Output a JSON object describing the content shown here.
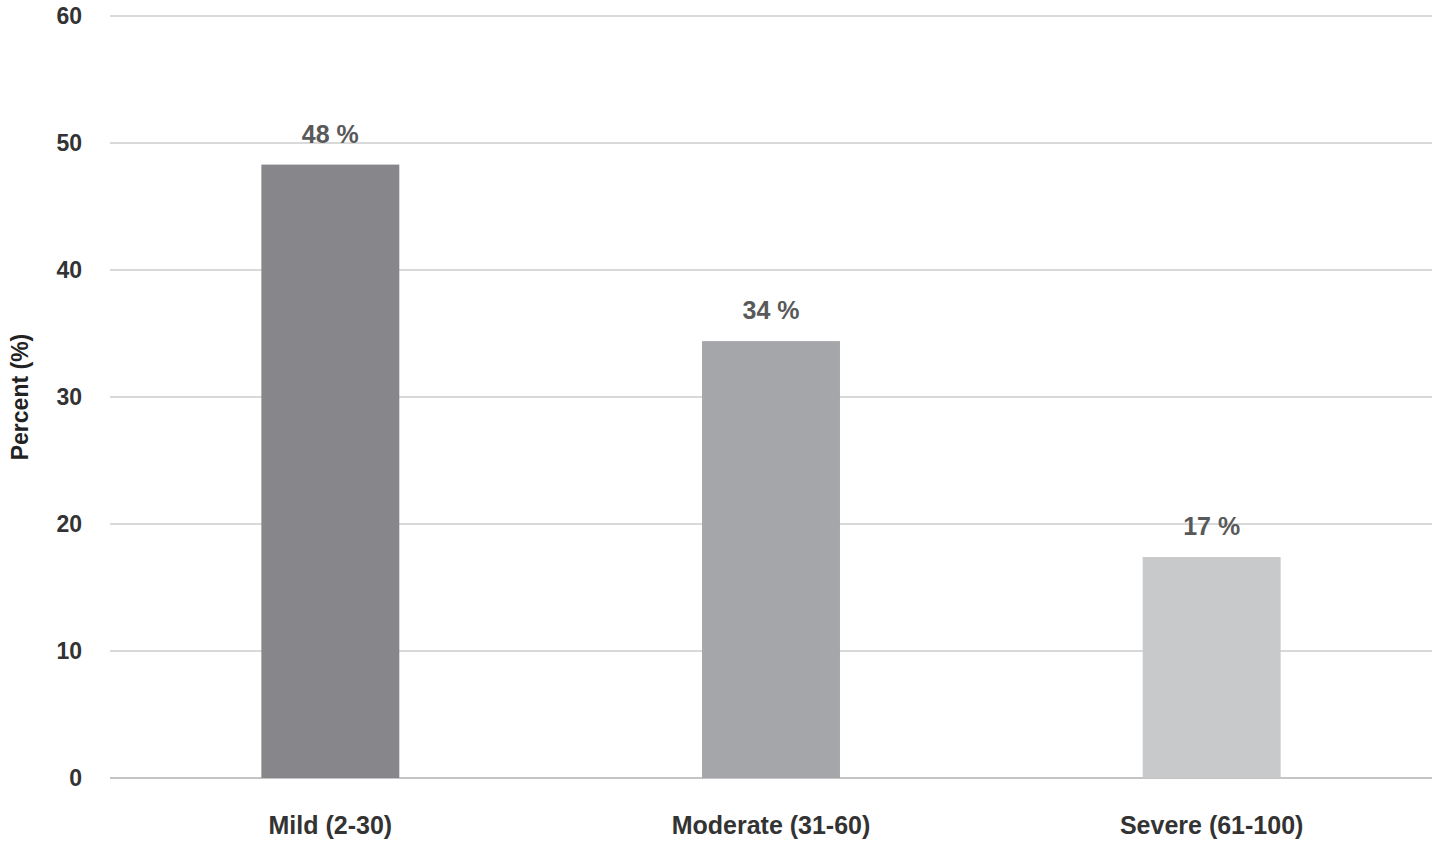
{
  "chart_data": {
    "type": "bar",
    "y_label": "Percent (%)",
    "categories": [
      "Mild (2-30)",
      "Moderate (31-60)",
      "Severe (61-100)"
    ],
    "values": [
      48.3,
      34.4,
      17.4
    ],
    "value_labels": [
      "48 %",
      "34 %",
      "17 %"
    ],
    "colors": [
      "#87878b",
      "#a5a6aa",
      "#c8c9cb"
    ],
    "ylim": [
      0,
      60
    ],
    "yticks": [
      0,
      10,
      20,
      30,
      40,
      50,
      60
    ],
    "grid": true,
    "data_labels": true
  }
}
